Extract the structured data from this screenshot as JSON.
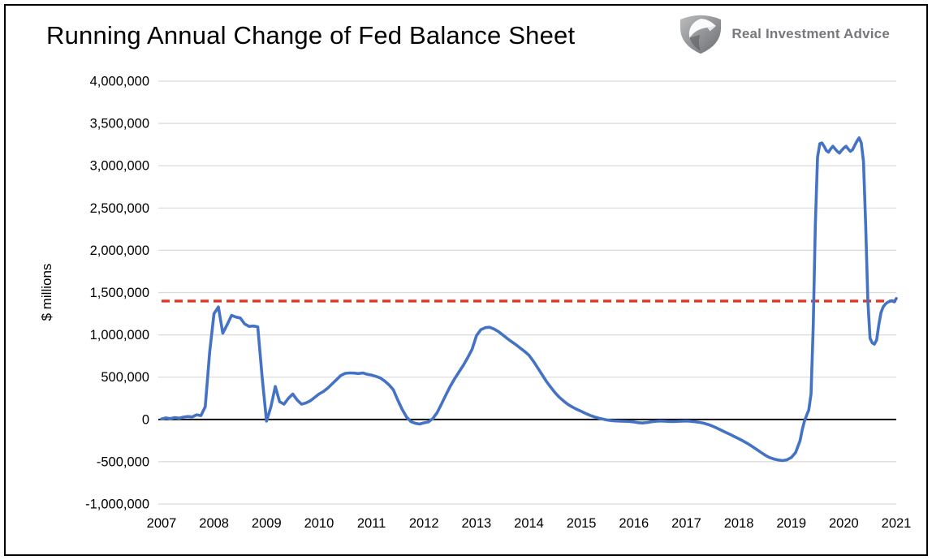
{
  "logo": {
    "text": "Real Investment Advice"
  },
  "chart_data": {
    "type": "line",
    "title": "Running Annual Change of Fed Balance Sheet",
    "ylabel": "$ millions",
    "xlabel": "",
    "legend": "none",
    "grid": "horizontal",
    "xlim": [
      2007,
      2021
    ],
    "ylim": [
      -1000000,
      4000000
    ],
    "x_ticks": [
      2007,
      2008,
      2009,
      2010,
      2011,
      2012,
      2013,
      2014,
      2015,
      2016,
      2017,
      2018,
      2019,
      2020,
      2021
    ],
    "y_ticks": [
      4000000,
      3500000,
      3000000,
      2500000,
      2000000,
      1500000,
      1000000,
      500000,
      0,
      -500000,
      -1000000
    ],
    "colors": {
      "series": "#4472C4",
      "reference": "#EA3223",
      "grid": "#D9D9D9",
      "zero_axis": "#000000"
    },
    "reference_line": {
      "value": 1400000,
      "style": "dashed",
      "color": "#EA3223"
    },
    "x": [
      2007.0,
      2007.083,
      2007.167,
      2007.25,
      2007.333,
      2007.417,
      2007.5,
      2007.583,
      2007.667,
      2007.75,
      2007.833,
      2007.917,
      2008.0,
      2008.083,
      2008.167,
      2008.25,
      2008.333,
      2008.417,
      2008.5,
      2008.583,
      2008.667,
      2008.75,
      2008.833,
      2008.917,
      2009.0,
      2009.083,
      2009.167,
      2009.25,
      2009.333,
      2009.417,
      2009.5,
      2009.583,
      2009.667,
      2009.75,
      2009.833,
      2009.917,
      2010.0,
      2010.083,
      2010.167,
      2010.25,
      2010.333,
      2010.417,
      2010.5,
      2010.583,
      2010.667,
      2010.75,
      2010.833,
      2010.917,
      2011.0,
      2011.083,
      2011.167,
      2011.25,
      2011.333,
      2011.417,
      2011.5,
      2011.583,
      2011.667,
      2011.75,
      2011.833,
      2011.917,
      2012.0,
      2012.083,
      2012.167,
      2012.25,
      2012.333,
      2012.417,
      2012.5,
      2012.583,
      2012.667,
      2012.75,
      2012.833,
      2012.917,
      2013.0,
      2013.083,
      2013.167,
      2013.25,
      2013.333,
      2013.417,
      2013.5,
      2013.583,
      2013.667,
      2013.75,
      2013.833,
      2013.917,
      2014.0,
      2014.083,
      2014.167,
      2014.25,
      2014.333,
      2014.417,
      2014.5,
      2014.583,
      2014.667,
      2014.75,
      2014.833,
      2014.917,
      2015.0,
      2015.083,
      2015.167,
      2015.25,
      2015.333,
      2015.417,
      2015.5,
      2015.583,
      2015.667,
      2015.75,
      2015.833,
      2015.917,
      2016.0,
      2016.083,
      2016.167,
      2016.25,
      2016.333,
      2016.417,
      2016.5,
      2016.583,
      2016.667,
      2016.75,
      2016.833,
      2016.917,
      2017.0,
      2017.083,
      2017.167,
      2017.25,
      2017.333,
      2017.417,
      2017.5,
      2017.583,
      2017.667,
      2017.75,
      2017.833,
      2017.917,
      2018.0,
      2018.083,
      2018.167,
      2018.25,
      2018.333,
      2018.417,
      2018.5,
      2018.583,
      2018.667,
      2018.75,
      2018.833,
      2018.917,
      2019.0,
      2019.083,
      2019.167,
      2019.208,
      2019.25,
      2019.292,
      2019.333,
      2019.375,
      2019.417,
      2019.458,
      2019.5,
      2019.542,
      2019.583,
      2019.625,
      2019.667,
      2019.708,
      2019.75,
      2019.792,
      2019.833,
      2019.875,
      2019.917,
      2019.958,
      2020.0,
      2020.042,
      2020.083,
      2020.125,
      2020.167,
      2020.208,
      2020.25,
      2020.292,
      2020.333,
      2020.375,
      2020.417,
      2020.458,
      2020.5,
      2020.542,
      2020.583,
      2020.625,
      2020.667,
      2020.708,
      2020.75,
      2020.792,
      2020.833,
      2020.875,
      2020.917,
      2020.958,
      2021.0
    ],
    "y": [
      5000,
      18000,
      10000,
      22000,
      15000,
      28000,
      35000,
      30000,
      55000,
      45000,
      150000,
      800000,
      1250000,
      1330000,
      1020000,
      1120000,
      1230000,
      1210000,
      1200000,
      1130000,
      1100000,
      1105000,
      1095000,
      500000,
      -20000,
      150000,
      390000,
      210000,
      180000,
      250000,
      300000,
      230000,
      180000,
      195000,
      220000,
      260000,
      300000,
      330000,
      370000,
      420000,
      470000,
      520000,
      545000,
      550000,
      548000,
      542000,
      550000,
      535000,
      525000,
      510000,
      490000,
      455000,
      410000,
      350000,
      230000,
      120000,
      30000,
      -25000,
      -45000,
      -55000,
      -40000,
      -30000,
      10000,
      80000,
      180000,
      290000,
      390000,
      480000,
      560000,
      640000,
      730000,
      830000,
      990000,
      1060000,
      1085000,
      1090000,
      1070000,
      1040000,
      1000000,
      960000,
      920000,
      885000,
      845000,
      805000,
      760000,
      690000,
      610000,
      530000,
      450000,
      380000,
      315000,
      260000,
      215000,
      175000,
      145000,
      118000,
      95000,
      70000,
      48000,
      30000,
      15000,
      3000,
      -8000,
      -14000,
      -18000,
      -20000,
      -22000,
      -24000,
      -30000,
      -38000,
      -42000,
      -36000,
      -28000,
      -22000,
      -18000,
      -20000,
      -24000,
      -26000,
      -23000,
      -20000,
      -18000,
      -22000,
      -28000,
      -35000,
      -45000,
      -60000,
      -80000,
      -103000,
      -128000,
      -153000,
      -178000,
      -203000,
      -228000,
      -255000,
      -285000,
      -318000,
      -352000,
      -388000,
      -422000,
      -450000,
      -468000,
      -480000,
      -487000,
      -478000,
      -450000,
      -390000,
      -250000,
      -120000,
      -20000,
      50000,
      110000,
      300000,
      1100000,
      2300000,
      3100000,
      3260000,
      3270000,
      3230000,
      3180000,
      3160000,
      3200000,
      3230000,
      3200000,
      3170000,
      3150000,
      3180000,
      3210000,
      3230000,
      3200000,
      3170000,
      3190000,
      3240000,
      3290000,
      3330000,
      3270000,
      3050000,
      2300000,
      1400000,
      960000,
      905000,
      890000,
      940000,
      1120000,
      1260000,
      1330000,
      1365000,
      1385000,
      1395000,
      1405000,
      1390000,
      1430000
    ]
  }
}
